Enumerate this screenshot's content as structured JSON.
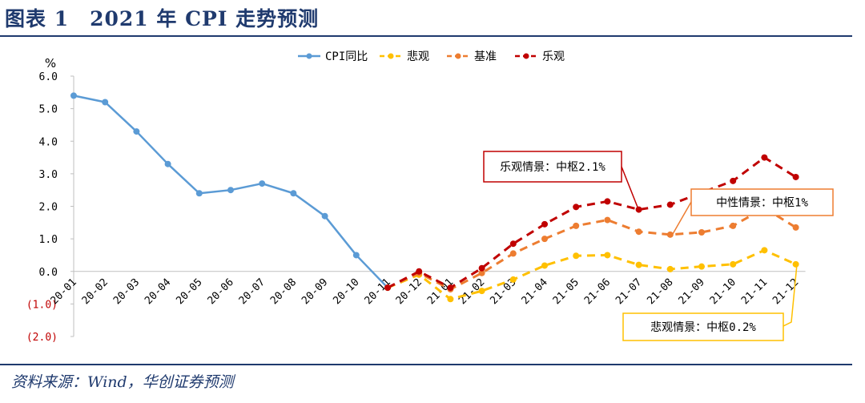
{
  "figure": {
    "title": "图表 1　2021 年 CPI 走势预测",
    "source": "资料来源：Wind，华创证券预测"
  },
  "chart_data": {
    "type": "line",
    "title": "2021 年 CPI 走势预测",
    "ylabel": "%",
    "xlabel": "",
    "ylim": [
      -2.0,
      6.0
    ],
    "y_ticks": [
      6.0,
      5.0,
      4.0,
      3.0,
      2.0,
      1.0,
      0.0,
      -1.0,
      -2.0
    ],
    "y_tick_labels": [
      "6.0",
      "5.0",
      "4.0",
      "3.0",
      "2.0",
      "1.0",
      "0.0",
      "(1.0)",
      "(2.0)"
    ],
    "categories": [
      "20-01",
      "20-02",
      "20-03",
      "20-04",
      "20-05",
      "20-06",
      "20-07",
      "20-08",
      "20-09",
      "20-10",
      "20-11",
      "20-12",
      "21-01",
      "21-02",
      "21-03",
      "21-04",
      "21-05",
      "21-06",
      "21-07",
      "21-08",
      "21-09",
      "21-10",
      "21-11",
      "21-12"
    ],
    "legend": [
      "CPI同比",
      "悲观",
      "基准",
      "乐观"
    ],
    "legend_position": "top-center",
    "series": [
      {
        "name": "CPI同比",
        "color": "#5b9bd5",
        "dash": false,
        "values": [
          5.4,
          5.2,
          4.3,
          3.3,
          2.4,
          2.5,
          2.7,
          2.4,
          1.7,
          0.5,
          -0.5,
          null,
          null,
          null,
          null,
          null,
          null,
          null,
          null,
          null,
          null,
          null,
          null,
          null
        ]
      },
      {
        "name": "悲观",
        "color": "#ffc000",
        "dash": true,
        "values": [
          null,
          null,
          null,
          null,
          null,
          null,
          null,
          null,
          null,
          null,
          -0.5,
          -0.1,
          -0.85,
          -0.6,
          -0.25,
          0.18,
          0.48,
          0.5,
          0.2,
          0.07,
          0.15,
          0.22,
          0.65,
          0.22
        ]
      },
      {
        "name": "基准",
        "color": "#ed7d31",
        "dash": true,
        "values": [
          null,
          null,
          null,
          null,
          null,
          null,
          null,
          null,
          null,
          null,
          -0.5,
          -0.05,
          -0.55,
          -0.05,
          0.55,
          1.0,
          1.4,
          1.58,
          1.22,
          1.13,
          1.2,
          1.4,
          1.95,
          1.35
        ]
      },
      {
        "name": "乐观",
        "color": "#c00000",
        "dash": true,
        "values": [
          null,
          null,
          null,
          null,
          null,
          null,
          null,
          null,
          null,
          null,
          -0.5,
          0.0,
          -0.5,
          0.1,
          0.85,
          1.45,
          1.98,
          2.15,
          1.9,
          2.05,
          2.42,
          2.78,
          3.5,
          2.9
        ]
      }
    ],
    "annotations": [
      {
        "text": "乐观情景：中枢2.1%",
        "border_color": "#c00000",
        "target_category": "21-07",
        "target_value": 1.9
      },
      {
        "text": "中性情景：中枢1%",
        "border_color": "#ed7d31",
        "target_category": "21-08",
        "target_value": 1.13
      },
      {
        "text": "悲观情景：中枢0.2%",
        "border_color": "#ffc000",
        "target_category": "21-12",
        "target_value": 0.22
      }
    ]
  }
}
